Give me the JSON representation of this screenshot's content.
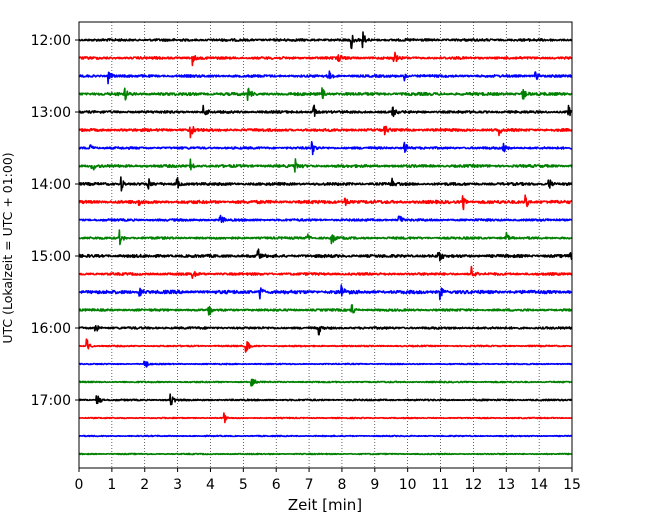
{
  "chart_data": {
    "type": "line",
    "subtype": "helicorder",
    "xlabel": "Zeit  [min]",
    "ylabel": "UTC (Lokalzeit = UTC + 01:00)",
    "xlim": [
      0,
      15
    ],
    "x_ticks": [
      0,
      1,
      2,
      3,
      4,
      5,
      6,
      7,
      8,
      9,
      10,
      11,
      12,
      13,
      14,
      15
    ],
    "x_tick_labels": [
      "0",
      "1",
      "2",
      "3",
      "4",
      "5",
      "6",
      "7",
      "8",
      "9",
      "10",
      "11",
      "12",
      "13",
      "14",
      "15"
    ],
    "y_tick_labels": [
      "12:00",
      "13:00",
      "14:00",
      "15:00",
      "16:00",
      "17:00"
    ],
    "grid_x": true,
    "grid_style": "dotted",
    "line_colors": [
      "#000000",
      "#ff0000",
      "#0000ff",
      "#008000"
    ],
    "traces": [
      {
        "start": "12:00",
        "color": "#000000",
        "noise": 0.22,
        "events": [
          8.3,
          8.65
        ]
      },
      {
        "start": "12:15",
        "color": "#ff0000",
        "noise": 0.22,
        "events": [
          3.45,
          7.9,
          9.6
        ]
      },
      {
        "start": "12:30",
        "color": "#0000ff",
        "noise": 0.22,
        "events": [
          0.9,
          7.6,
          9.9,
          13.9
        ]
      },
      {
        "start": "12:45",
        "color": "#008000",
        "noise": 0.26,
        "events": [
          1.4,
          5.15,
          7.4,
          13.5
        ]
      },
      {
        "start": "13:00",
        "color": "#000000",
        "noise": 0.22,
        "events": [
          3.8,
          7.15,
          9.55,
          14.9
        ]
      },
      {
        "start": "13:15",
        "color": "#ff0000",
        "noise": 0.24,
        "events": [
          3.4,
          9.3,
          12.8
        ]
      },
      {
        "start": "13:30",
        "color": "#0000ff",
        "noise": 0.2,
        "events": [
          0.35,
          7.1,
          9.9,
          12.9
        ]
      },
      {
        "start": "13:45",
        "color": "#008000",
        "noise": 0.24,
        "events": [
          0.4,
          3.4,
          6.6
        ]
      },
      {
        "start": "14:00",
        "color": "#000000",
        "noise": 0.24,
        "events": [
          1.3,
          2.1,
          3.0,
          9.5,
          14.3
        ]
      },
      {
        "start": "14:15",
        "color": "#ff0000",
        "noise": 0.28,
        "events": [
          1.8,
          8.1,
          11.7,
          13.6
        ]
      },
      {
        "start": "14:30",
        "color": "#0000ff",
        "noise": 0.2,
        "events": [
          4.3,
          9.75
        ]
      },
      {
        "start": "14:45",
        "color": "#008000",
        "noise": 0.2,
        "events": [
          1.25,
          6.9,
          7.7,
          13.0
        ]
      },
      {
        "start": "15:00",
        "color": "#000000",
        "noise": 0.26,
        "events": [
          5.45,
          10.95,
          14.95
        ]
      },
      {
        "start": "15:15",
        "color": "#ff0000",
        "noise": 0.22,
        "events": [
          3.45,
          11.95
        ]
      },
      {
        "start": "15:30",
        "color": "#0000ff",
        "noise": 0.3,
        "events": [
          1.85,
          5.5,
          8.0,
          11.0
        ]
      },
      {
        "start": "15:45",
        "color": "#008000",
        "noise": 0.2,
        "events": [
          3.95,
          8.3
        ]
      },
      {
        "start": "16:00",
        "color": "#000000",
        "noise": 0.2,
        "events": [
          0.5,
          7.3
        ]
      },
      {
        "start": "16:15",
        "color": "#ff0000",
        "noise": 0.12,
        "events": [
          0.25,
          5.1
        ]
      },
      {
        "start": "16:30",
        "color": "#0000ff",
        "noise": 0.1,
        "events": [
          2.0
        ]
      },
      {
        "start": "16:45",
        "color": "#008000",
        "noise": 0.12,
        "events": [
          5.25
        ]
      },
      {
        "start": "17:00",
        "color": "#000000",
        "noise": 0.14,
        "events": [
          0.55,
          2.8
        ]
      },
      {
        "start": "17:15",
        "color": "#ff0000",
        "noise": 0.1,
        "events": [
          4.4
        ]
      },
      {
        "start": "17:30",
        "color": "#0000ff",
        "noise": 0.1,
        "events": []
      },
      {
        "start": "17:45",
        "color": "#008000",
        "noise": 0.1,
        "events": []
      }
    ]
  }
}
